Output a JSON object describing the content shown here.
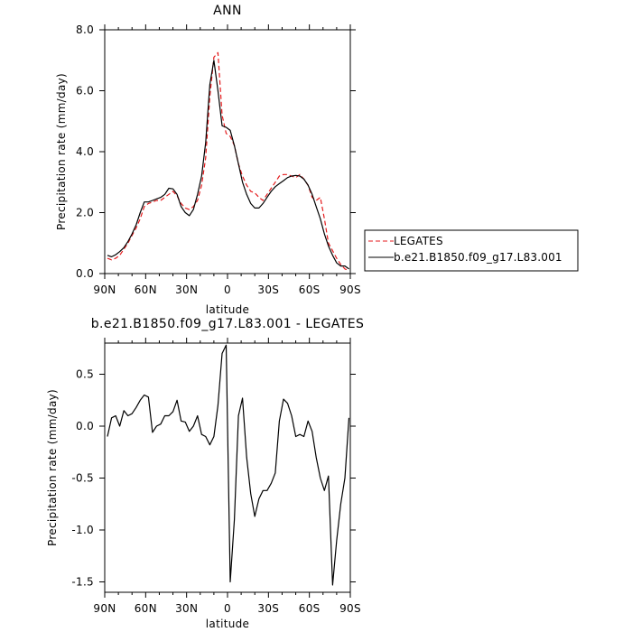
{
  "chart_data": [
    {
      "type": "line",
      "title": "ANN",
      "xlabel": "latitude",
      "ylabel": "Precipitation rate (mm/day)",
      "xlim": [
        90,
        -90
      ],
      "ylim": [
        0,
        8
      ],
      "xticks": [
        90,
        60,
        30,
        0,
        -30,
        -60,
        -90
      ],
      "xtick_labels": [
        "90N",
        "60N",
        "30N",
        "0",
        "30S",
        "60S",
        "90S"
      ],
      "yticks": [
        0,
        2,
        4,
        6,
        8
      ],
      "ytick_labels": [
        "0.0",
        "2.0",
        "4.0",
        "6.0",
        "8.0"
      ],
      "legend_position": "right",
      "series": [
        {
          "name": "LEGATES",
          "color": "#e41a1c",
          "dash": "dashed",
          "x": [
            88,
            85,
            82,
            79,
            76,
            73,
            70,
            67,
            64,
            61,
            58,
            55,
            52,
            49,
            46,
            43,
            40,
            37,
            34,
            31,
            28,
            25,
            22,
            19,
            16,
            13,
            10,
            7,
            4,
            1,
            -2,
            -5,
            -8,
            -11,
            -14,
            -17,
            -20,
            -23,
            -26,
            -29,
            -32,
            -35,
            -38,
            -41,
            -44,
            -47,
            -50,
            -53,
            -56,
            -59,
            -62,
            -65,
            -68,
            -71,
            -74,
            -77,
            -80,
            -83,
            -86,
            -89
          ],
          "y": [
            0.5,
            0.45,
            0.5,
            0.6,
            0.8,
            1.0,
            1.25,
            1.5,
            1.8,
            2.2,
            2.3,
            2.35,
            2.4,
            2.4,
            2.5,
            2.6,
            2.7,
            2.55,
            2.3,
            2.15,
            2.1,
            2.2,
            2.4,
            2.9,
            3.8,
            5.8,
            7.1,
            7.25,
            5.2,
            4.6,
            4.5,
            4.2,
            3.6,
            3.2,
            2.9,
            2.7,
            2.65,
            2.5,
            2.4,
            2.6,
            2.8,
            3.0,
            3.2,
            3.25,
            3.25,
            3.2,
            3.15,
            3.25,
            3.1,
            2.9,
            2.5,
            2.4,
            2.5,
            1.8,
            1.0,
            0.75,
            0.5,
            0.3,
            0.15,
            0.1
          ]
        },
        {
          "name": "b.e21.B1850.f09_g17.L83.001",
          "color": "#000000",
          "dash": "solid",
          "x": [
            88,
            85,
            82,
            79,
            76,
            73,
            70,
            67,
            64,
            61,
            58,
            55,
            52,
            49,
            46,
            43,
            40,
            37,
            34,
            31,
            28,
            25,
            22,
            19,
            16,
            13,
            10,
            7,
            4,
            1,
            -2,
            -5,
            -8,
            -11,
            -14,
            -17,
            -20,
            -23,
            -26,
            -29,
            -32,
            -35,
            -38,
            -41,
            -44,
            -47,
            -50,
            -53,
            -56,
            -59,
            -62,
            -65,
            -68,
            -71,
            -74,
            -77,
            -80,
            -83,
            -86,
            -89
          ],
          "y": [
            0.6,
            0.55,
            0.62,
            0.72,
            0.85,
            1.05,
            1.3,
            1.6,
            2.0,
            2.35,
            2.35,
            2.4,
            2.45,
            2.5,
            2.6,
            2.8,
            2.78,
            2.6,
            2.2,
            2.0,
            1.9,
            2.1,
            2.6,
            3.2,
            4.3,
            6.2,
            7.0,
            6.0,
            4.85,
            4.8,
            4.7,
            4.2,
            3.6,
            3.0,
            2.6,
            2.3,
            2.15,
            2.15,
            2.3,
            2.5,
            2.7,
            2.85,
            2.95,
            3.05,
            3.15,
            3.2,
            3.22,
            3.2,
            3.1,
            2.9,
            2.6,
            2.2,
            1.8,
            1.3,
            0.9,
            0.6,
            0.35,
            0.25,
            0.25,
            0.15
          ]
        }
      ]
    },
    {
      "type": "line",
      "title": "b.e21.B1850.f09_g17.L83.001 - LEGATES",
      "xlabel": "latitude",
      "ylabel": "Precipitation rate (mm/day)",
      "xlim": [
        90,
        -90
      ],
      "ylim": [
        -1.6,
        0.8
      ],
      "xticks": [
        90,
        60,
        30,
        0,
        -30,
        -60,
        -90
      ],
      "xtick_labels": [
        "90N",
        "60N",
        "30N",
        "0",
        "30S",
        "60S",
        "90S"
      ],
      "yticks": [
        0.5,
        0,
        -0.5,
        -1.0,
        -1.5
      ],
      "ytick_labels": [
        "0.5",
        "0.0",
        "-0.5",
        "-1.0",
        "-1.5"
      ],
      "series": [
        {
          "name": "",
          "color": "#000000",
          "dash": "solid",
          "x": [
            88,
            85,
            82,
            79,
            76,
            73,
            70,
            67,
            64,
            61,
            58,
            55,
            52,
            49,
            46,
            43,
            40,
            37,
            34,
            31,
            28,
            25,
            22,
            19,
            16,
            13,
            10,
            7,
            4,
            1,
            -2,
            -5,
            -8,
            -11,
            -14,
            -17,
            -20,
            -23,
            -26,
            -29,
            -32,
            -35,
            -38,
            -41,
            -44,
            -47,
            -50,
            -53,
            -56,
            -59,
            -62,
            -65,
            -68,
            -71,
            -74,
            -77,
            -80,
            -83,
            -86,
            -89
          ],
          "y": [
            -0.1,
            0.08,
            0.1,
            0.0,
            0.15,
            0.1,
            0.12,
            0.18,
            0.25,
            0.3,
            0.28,
            -0.06,
            0.0,
            0.02,
            0.1,
            0.1,
            0.14,
            0.25,
            0.05,
            0.04,
            -0.05,
            0.0,
            0.1,
            -0.08,
            -0.1,
            -0.18,
            -0.1,
            0.2,
            0.7,
            0.78,
            -1.5,
            -0.9,
            0.1,
            0.27,
            -0.3,
            -0.65,
            -0.87,
            -0.7,
            -0.62,
            -0.62,
            -0.55,
            -0.45,
            0.05,
            0.26,
            0.22,
            0.1,
            -0.1,
            -0.08,
            -0.1,
            0.05,
            -0.05,
            -0.3,
            -0.5,
            -0.62,
            -0.48,
            -1.53,
            -1.1,
            -0.75,
            -0.5,
            0.08
          ]
        }
      ]
    }
  ]
}
